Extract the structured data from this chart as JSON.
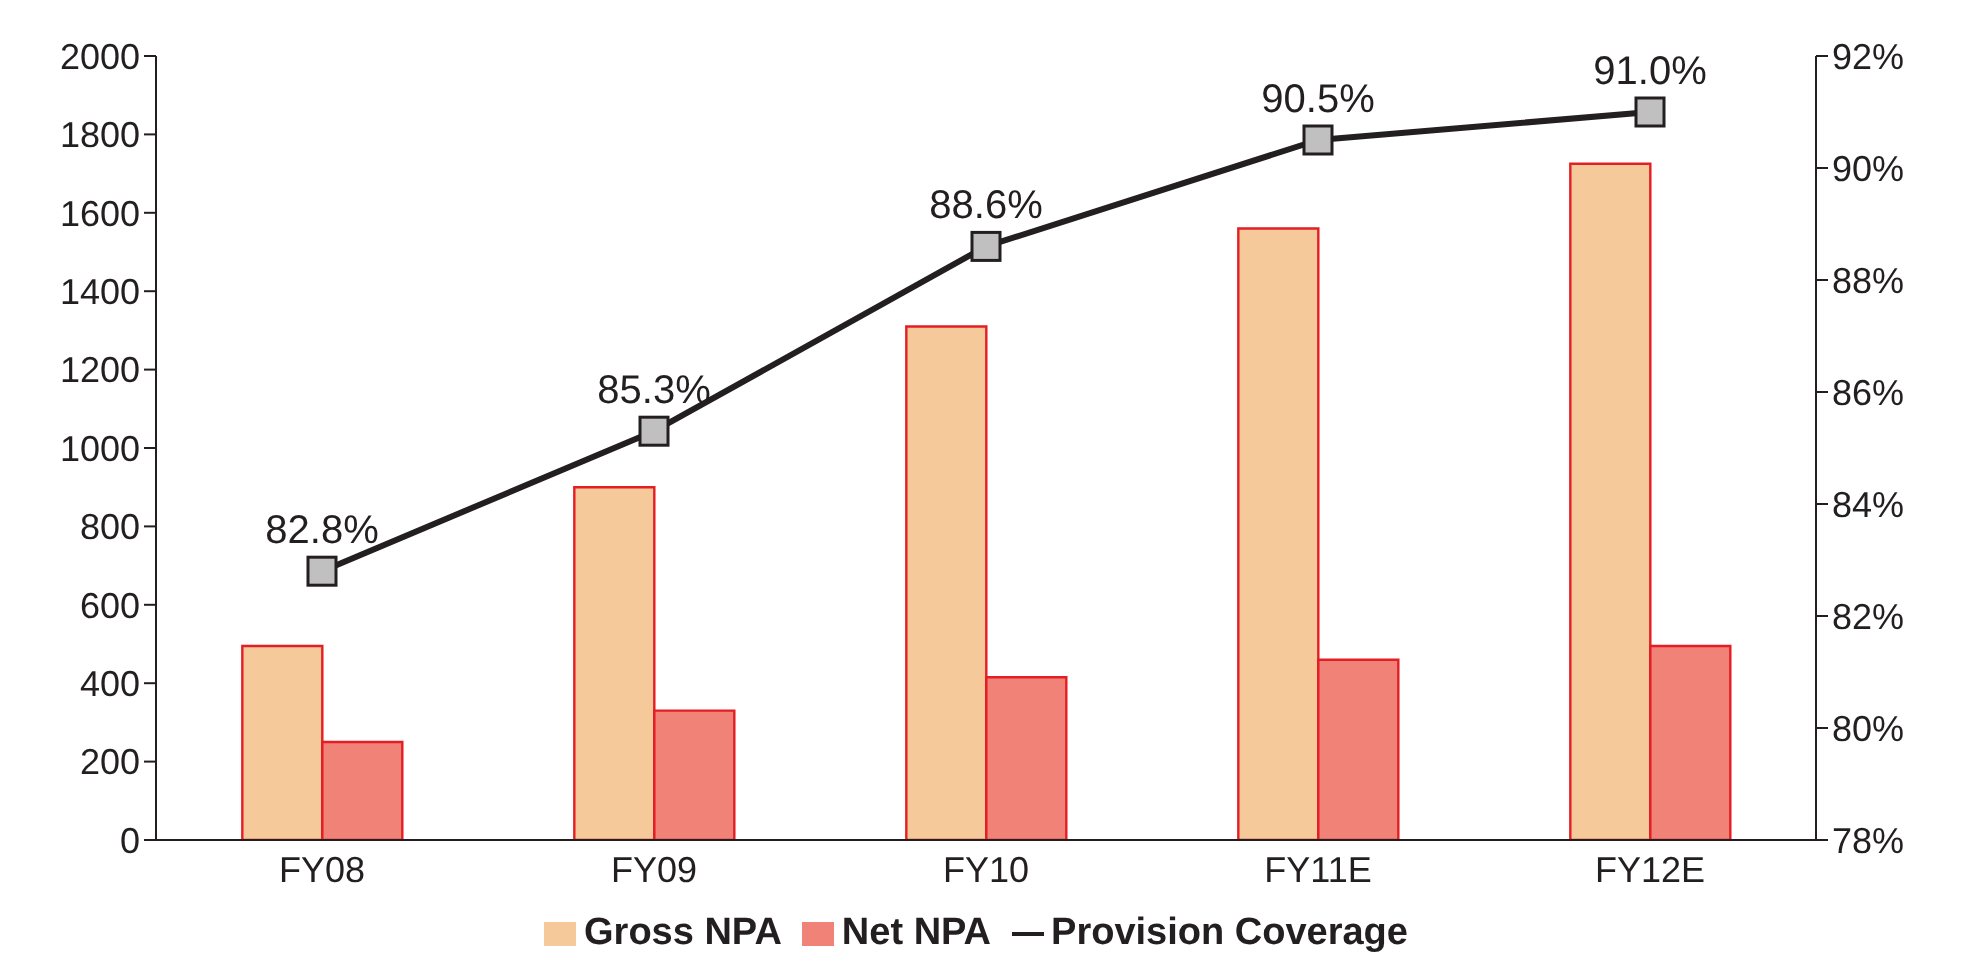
{
  "chart_data": {
    "type": "bar",
    "categories": [
      "FY08",
      "FY09",
      "FY10",
      "FY11E",
      "FY12E"
    ],
    "series": [
      {
        "name": "Gross NPA",
        "color": "#f5c99a",
        "values": [
          495,
          900,
          1310,
          1560,
          1725
        ]
      },
      {
        "name": "Net NPA",
        "color": "#f08278",
        "values": [
          250,
          330,
          415,
          460,
          495
        ]
      },
      {
        "name": "Provision Coverage",
        "type": "line",
        "axis": "y2",
        "color": "#231f20",
        "marker": "square",
        "values": [
          82.8,
          85.3,
          88.6,
          90.5,
          91.0
        ],
        "value_labels": [
          "82.8%",
          "85.3%",
          "88.6%",
          "90.5%",
          "91.0%"
        ]
      }
    ],
    "ylim": [
      0,
      2000
    ],
    "yticks": [
      0,
      200,
      400,
      600,
      800,
      1000,
      1200,
      1400,
      1600,
      1800,
      2000
    ],
    "y2lim": [
      78,
      92
    ],
    "y2ticks": [
      {
        "value": 78,
        "label": "78%"
      },
      {
        "value": 80,
        "label": "80%"
      },
      {
        "value": 82,
        "label": "82%"
      },
      {
        "value": 84,
        "label": "84%"
      },
      {
        "value": 86,
        "label": "86%"
      },
      {
        "value": 88,
        "label": "88%"
      },
      {
        "value": 90,
        "label": "90%"
      },
      {
        "value": 92,
        "label": "92%"
      }
    ],
    "legend": "bottom"
  }
}
